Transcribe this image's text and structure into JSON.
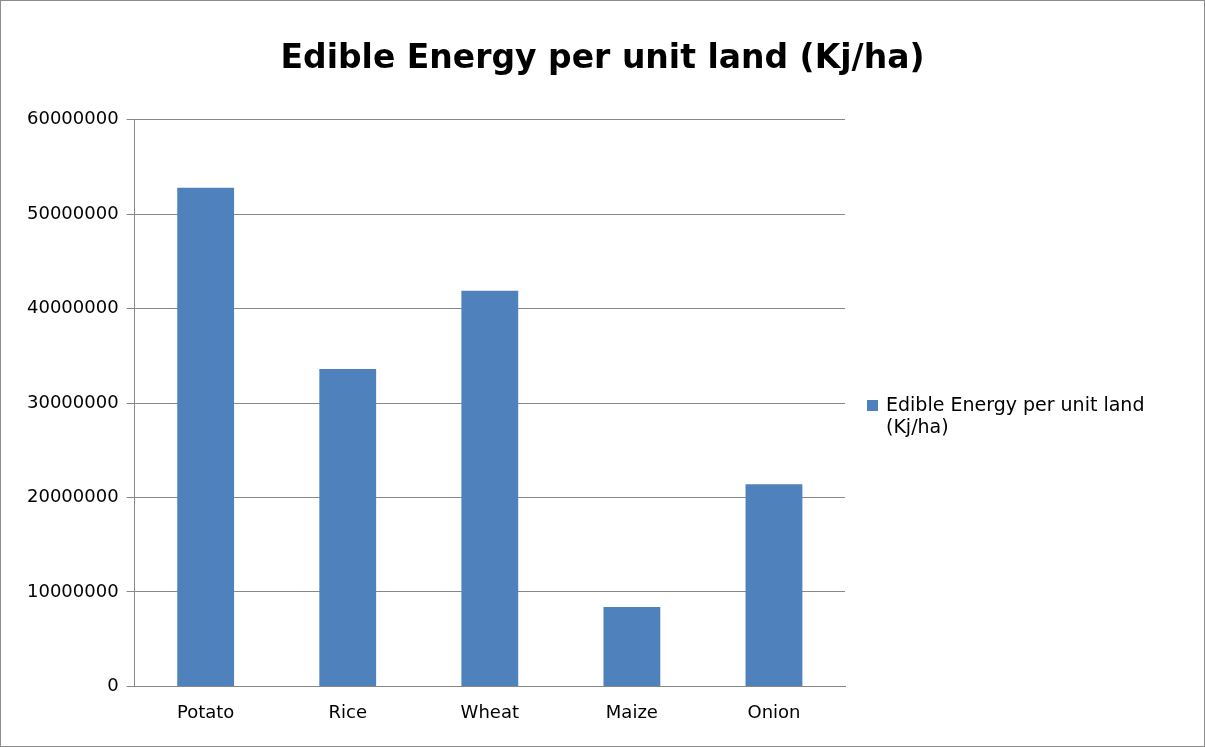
{
  "chart_data": {
    "type": "bar",
    "title": "Edible Energy per unit land (Kj/ha)",
    "categories": [
      "Potato",
      "Rice",
      "Wheat",
      "Maize",
      "Onion"
    ],
    "series": [
      {
        "name": "Edible Energy per unit land (Kj/ha)",
        "color": "#4f81bd",
        "values": [
          52800000,
          33600000,
          41900000,
          8400000,
          21400000
        ]
      }
    ],
    "ylim": [
      0,
      60000000
    ],
    "yticks": [
      0,
      10000000,
      20000000,
      30000000,
      40000000,
      50000000,
      60000000
    ],
    "grid": "y",
    "legend": "right"
  }
}
